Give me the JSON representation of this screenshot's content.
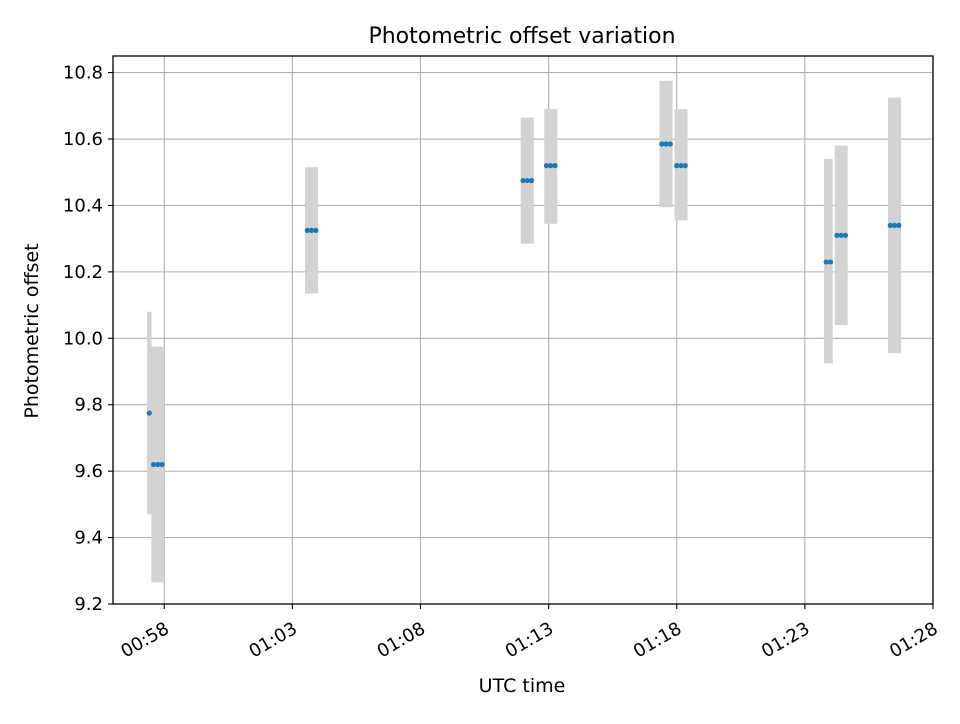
{
  "colors": {
    "marker": "#1f77b4",
    "errorbar": "#d3d3d3",
    "grid": "#b0b0b0",
    "axis": "#000000"
  },
  "chart_data": {
    "type": "scatter",
    "title": "Photometric offset variation",
    "xlabel": "UTC time",
    "ylabel": "Photometric offset",
    "x_unit": "minutes",
    "xlim": [
      "00:56:00",
      "01:28:00"
    ],
    "ylim": [
      9.2,
      10.85
    ],
    "x_ticks": [
      "00:58",
      "01:03",
      "01:08",
      "01:13",
      "01:18",
      "01:23",
      "01:28"
    ],
    "y_ticks": [
      9.2,
      9.4,
      9.6,
      9.8,
      10.0,
      10.2,
      10.4,
      10.6,
      10.8
    ],
    "grid": true,
    "series": [
      {
        "marker_color": "#1f77b4",
        "errorbar_color": "#d3d3d3",
        "points": [
          {
            "x": "00:57:25",
            "y": 9.775,
            "ylo": 9.47,
            "yhi": 10.08
          },
          {
            "x": "00:57:35",
            "y": 9.62,
            "ylo": 9.265,
            "yhi": 9.975
          },
          {
            "x": "00:57:45",
            "y": 9.62,
            "ylo": 9.265,
            "yhi": 9.975
          },
          {
            "x": "00:57:55",
            "y": 9.62,
            "ylo": 9.265,
            "yhi": 9.975
          },
          {
            "x": "01:03:35",
            "y": 10.325,
            "ylo": 10.135,
            "yhi": 10.515
          },
          {
            "x": "01:03:45",
            "y": 10.325,
            "ylo": 10.135,
            "yhi": 10.515
          },
          {
            "x": "01:03:55",
            "y": 10.325,
            "ylo": 10.135,
            "yhi": 10.515
          },
          {
            "x": "01:12:00",
            "y": 10.475,
            "ylo": 10.285,
            "yhi": 10.665
          },
          {
            "x": "01:12:10",
            "y": 10.475,
            "ylo": 10.285,
            "yhi": 10.665
          },
          {
            "x": "01:12:20",
            "y": 10.475,
            "ylo": 10.285,
            "yhi": 10.665
          },
          {
            "x": "01:12:55",
            "y": 10.52,
            "ylo": 10.345,
            "yhi": 10.69
          },
          {
            "x": "01:13:05",
            "y": 10.52,
            "ylo": 10.345,
            "yhi": 10.69
          },
          {
            "x": "01:13:15",
            "y": 10.52,
            "ylo": 10.345,
            "yhi": 10.69
          },
          {
            "x": "01:17:25",
            "y": 10.585,
            "ylo": 10.395,
            "yhi": 10.775
          },
          {
            "x": "01:17:35",
            "y": 10.585,
            "ylo": 10.395,
            "yhi": 10.775
          },
          {
            "x": "01:17:45",
            "y": 10.585,
            "ylo": 10.395,
            "yhi": 10.775
          },
          {
            "x": "01:18:00",
            "y": 10.52,
            "ylo": 10.355,
            "yhi": 10.69
          },
          {
            "x": "01:18:10",
            "y": 10.52,
            "ylo": 10.355,
            "yhi": 10.69
          },
          {
            "x": "01:18:20",
            "y": 10.52,
            "ylo": 10.355,
            "yhi": 10.69
          },
          {
            "x": "01:23:50",
            "y": 10.23,
            "ylo": 9.925,
            "yhi": 10.54
          },
          {
            "x": "01:24:00",
            "y": 10.23,
            "ylo": 9.925,
            "yhi": 10.54
          },
          {
            "x": "01:24:15",
            "y": 10.31,
            "ylo": 10.04,
            "yhi": 10.58
          },
          {
            "x": "01:24:25",
            "y": 10.31,
            "ylo": 10.04,
            "yhi": 10.58
          },
          {
            "x": "01:24:35",
            "y": 10.31,
            "ylo": 10.04,
            "yhi": 10.58
          },
          {
            "x": "01:26:20",
            "y": 10.34,
            "ylo": 9.955,
            "yhi": 10.725
          },
          {
            "x": "01:26:30",
            "y": 10.34,
            "ylo": 9.955,
            "yhi": 10.725
          },
          {
            "x": "01:26:40",
            "y": 10.34,
            "ylo": 9.955,
            "yhi": 10.725
          }
        ]
      }
    ]
  }
}
